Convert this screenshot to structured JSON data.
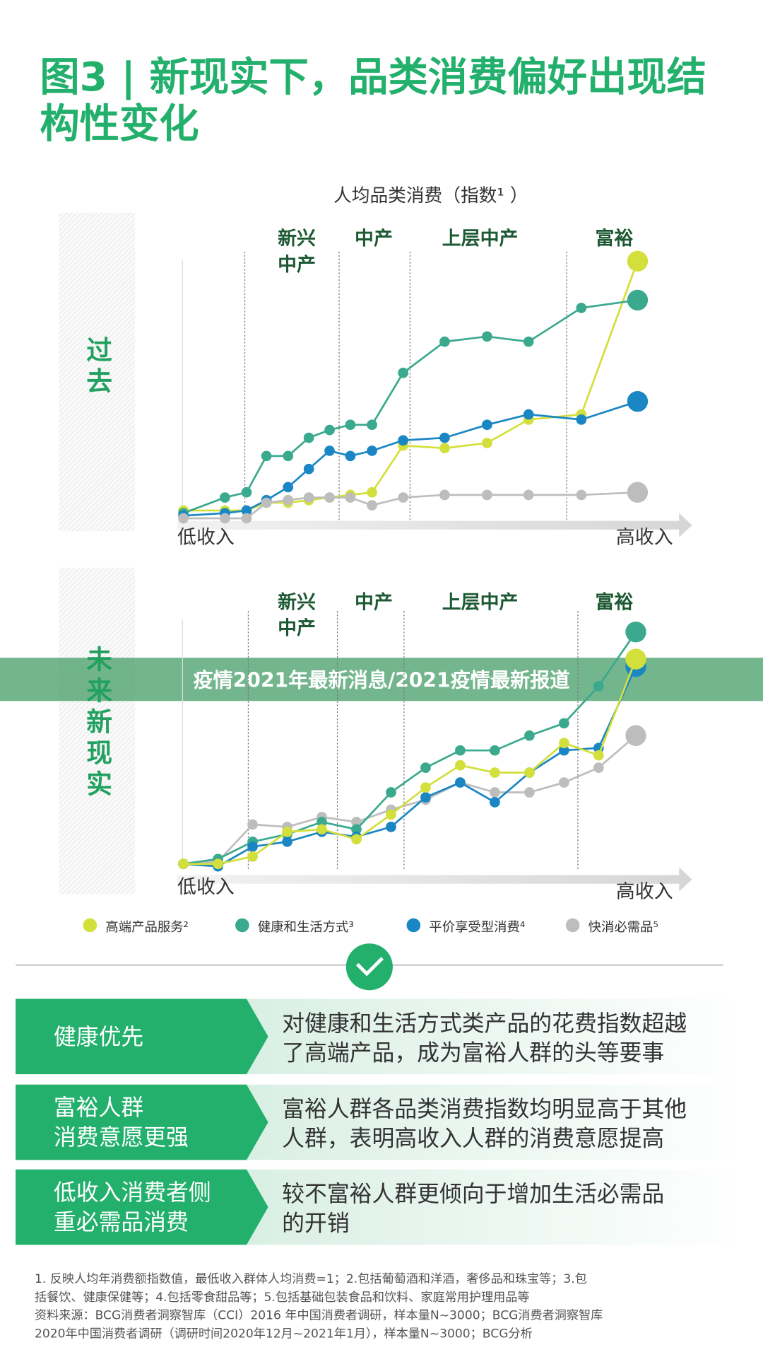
{
  "title": [
    "图3 | 新现实下，品类消费偏好出现结",
    "构性变化"
  ],
  "chart_data": [
    {
      "type": "line",
      "side_label": "过去",
      "subtitle": "人均品类消费（指数¹ ）",
      "segments": [
        [
          "新兴",
          "中产"
        ],
        [
          "中产"
        ],
        [
          "上层中产"
        ],
        [
          "富裕"
        ]
      ],
      "x_low": "低收入",
      "x_high": "高收入",
      "ylim": [
        0,
        100
      ],
      "categories": [
        null,
        null,
        null,
        null,
        null,
        null,
        null,
        null,
        null,
        null,
        null,
        null,
        null,
        null,
        null
      ],
      "series": [
        {
          "name": "高端产品服务²",
          "color": "#d3df3a",
          "values": [
            3,
            3,
            3,
            6,
            6,
            7,
            8,
            9,
            10,
            28,
            27,
            29,
            38,
            40,
            99
          ]
        },
        {
          "name": "健康和生活方式³",
          "color": "#3aa98e",
          "values": [
            2,
            8,
            10,
            24,
            24,
            31,
            34,
            36,
            36,
            56,
            68,
            70,
            68,
            81,
            84
          ]
        },
        {
          "name": "平价享受型消费⁴",
          "color": "#1a86c4",
          "values": [
            1,
            2,
            3,
            7,
            12,
            19,
            26,
            24,
            26,
            30,
            31,
            36,
            40,
            38,
            45
          ]
        },
        {
          "name": "快消必需品⁵",
          "color": "#bdbdbd",
          "values": [
            0,
            0,
            0,
            6,
            7,
            8,
            8,
            8,
            5,
            8,
            9,
            9,
            9,
            9,
            10
          ]
        }
      ]
    },
    {
      "type": "line",
      "side_label": "未来新现实",
      "segments": [
        [
          "新兴",
          "中产"
        ],
        [
          "中产"
        ],
        [
          "上层中产"
        ],
        [
          "富裕"
        ]
      ],
      "x_low": "低收入",
      "x_high": "高收入",
      "ylim": [
        0,
        100
      ],
      "categories": [
        null,
        null,
        null,
        null,
        null,
        null,
        null,
        null,
        null,
        null,
        null,
        null,
        null,
        null
      ],
      "series": [
        {
          "color": "#bdbdbd",
          "values": [
            1,
            2,
            17,
            16,
            20,
            18,
            23,
            27,
            34,
            30,
            30,
            34,
            40,
            53
          ]
        },
        {
          "color": "#3aa98e",
          "values": [
            1,
            3,
            10,
            13,
            18,
            15,
            30,
            40,
            47,
            47,
            53,
            58,
            73,
            95
          ]
        },
        {
          "color": "#1a86c4",
          "values": [
            1,
            0,
            8,
            10,
            14,
            12,
            16,
            28,
            34,
            26,
            38,
            47,
            48,
            81
          ]
        },
        {
          "color": "#d3df3a",
          "values": [
            1,
            1,
            4,
            14,
            15,
            11,
            21,
            32,
            41,
            38,
            38,
            50,
            45,
            84
          ]
        }
      ]
    }
  ],
  "banner": "疫情2021年最新消息/2021疫情最新报道",
  "rows": [
    {
      "left": [
        "健康优先"
      ],
      "right": [
        "对健康和生活方式类产品的花费指数超越",
        "了高端产品，成为富裕人群的头等要事"
      ]
    },
    {
      "left": [
        "富裕人群",
        "消费意愿更强"
      ],
      "right": [
        "富裕人群各品类消费指数均明显高于其他",
        "人群，表明高收入人群的消费意愿提高"
      ]
    },
    {
      "left": [
        "低收入消费者侧",
        "重必需品消费"
      ],
      "right": [
        "较不富裕人群更倾向于增加生活必需品",
        "的开销"
      ]
    }
  ],
  "footnotes": [
    "1. 反映人均年消费额指数值，最低收入群体人均消费=1；2.包括葡萄酒和洋酒，奢侈品和珠宝等；3.包",
    "括餐饮、健康保健等；4.包括零食甜品等；5.包括基础包装食品和饮料、家庭常用护理用品等",
    "资料来源：BCG消费者洞察智库（CCI）2016 年中国消费者调研，样本量N~3000；BCG消费者洞察智库",
    "2020年中国消费者调研（调研时间2020年12月~2021年1月），样本量N~3000；BCG分析"
  ]
}
